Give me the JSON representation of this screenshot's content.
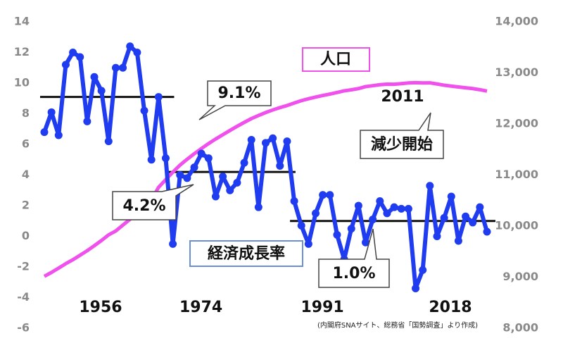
{
  "chart_data": {
    "type": "line",
    "x": [
      1956,
      1957,
      1958,
      1959,
      1960,
      1961,
      1962,
      1963,
      1964,
      1965,
      1966,
      1967,
      1968,
      1969,
      1970,
      1971,
      1972,
      1973,
      1974,
      1975,
      1976,
      1977,
      1978,
      1979,
      1980,
      1981,
      1982,
      1983,
      1984,
      1985,
      1986,
      1987,
      1988,
      1989,
      1990,
      1991,
      1992,
      1993,
      1994,
      1995,
      1996,
      1997,
      1998,
      1999,
      2000,
      2001,
      2002,
      2003,
      2004,
      2005,
      2006,
      2007,
      2008,
      2009,
      2010,
      2011,
      2012,
      2013,
      2014,
      2015,
      2016,
      2017,
      2018
    ],
    "xlim": [
      1956,
      2018
    ],
    "xticks": [
      1956,
      1974,
      1991,
      2018
    ],
    "ylim": [
      -6,
      14
    ],
    "yticks": [
      -6,
      -4,
      -2,
      0,
      2,
      4,
      6,
      8,
      10,
      12,
      14
    ],
    "y2lim": [
      8000,
      14000
    ],
    "y2ticks": [
      {
        "value": 8000,
        "label": "8,000"
      },
      {
        "value": 9000,
        "label": "9,000"
      },
      {
        "value": 10000,
        "label": "10,000"
      },
      {
        "value": 11000,
        "label": "11,000"
      },
      {
        "value": 12000,
        "label": "12,000"
      },
      {
        "value": 13000,
        "label": "13,000"
      },
      {
        "value": 14000,
        "label": "14,000"
      }
    ],
    "series": [
      {
        "name": "経済成長率",
        "color": "#1f3cf0",
        "markers": true,
        "values": [
          6.8,
          8.1,
          6.6,
          11.2,
          12.0,
          11.7,
          7.5,
          10.4,
          9.5,
          6.2,
          11.0,
          11.0,
          12.4,
          12.0,
          8.2,
          5.0,
          9.1,
          5.1,
          -0.5,
          4.0,
          3.8,
          4.5,
          5.4,
          5.1,
          2.6,
          3.9,
          3.0,
          3.5,
          4.8,
          6.3,
          1.9,
          6.1,
          6.4,
          4.6,
          6.2,
          2.3,
          0.7,
          -0.5,
          1.5,
          2.7,
          2.7,
          0.1,
          -1.5,
          0.5,
          2.0,
          -0.4,
          1.1,
          2.3,
          1.5,
          1.9,
          1.8,
          1.8,
          -3.4,
          -2.2,
          3.3,
          0.0,
          1.2,
          2.6,
          -0.3,
          1.3,
          0.9,
          1.9,
          0.3
        ]
      },
      {
        "name": "人口",
        "color": "#f050ec",
        "axis": "y2",
        "markers": false,
        "values": [
          9017,
          9093,
          9177,
          9264,
          9342,
          9429,
          9518,
          9616,
          9718,
          9828,
          9904,
          10020,
          10133,
          10254,
          10372,
          10515,
          10760,
          10910,
          11057,
          11194,
          11309,
          11417,
          11519,
          11616,
          11706,
          11790,
          11873,
          11954,
          12031,
          12105,
          12166,
          12224,
          12275,
          12321,
          12361,
          12410,
          12457,
          12494,
          12527,
          12557,
          12586,
          12616,
          12649,
          12669,
          12693,
          12732,
          12749,
          12769,
          12779,
          12777,
          12790,
          12803,
          12808,
          12803,
          12806,
          12783,
          12759,
          12741,
          12724,
          12709,
          12693,
          12671,
          12644
        ]
      }
    ],
    "period_averages": [
      {
        "label": "9.1%",
        "value": 9.1,
        "start": 1956,
        "end": 1973
      },
      {
        "label": "4.2%",
        "value": 4.2,
        "start": 1974,
        "end": 1990
      },
      {
        "label": "1.0%",
        "value": 1.0,
        "start": 1991,
        "end": 2018
      }
    ],
    "annotations": [
      "減少開始",
      "2011"
    ],
    "source": "(内閣府SNAサイト、総務省「国勢調査」より作成)"
  }
}
